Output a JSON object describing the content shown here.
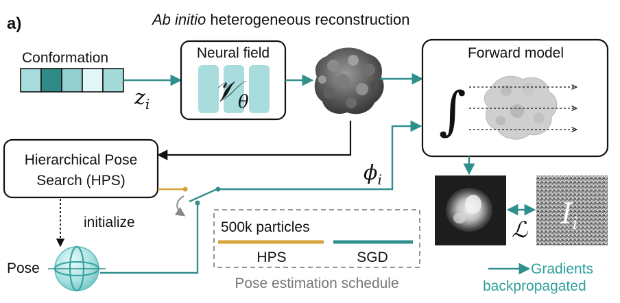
{
  "panel_label": "a)",
  "title_italic": "Ab initio",
  "title_rest": " heterogeneous reconstruction",
  "conformation": {
    "label": "Conformation",
    "cells": [
      "#a8dcdc",
      "#2f8a88",
      "#93cfcf",
      "#e3f6f6",
      "#a4dada"
    ],
    "latent_symbol": "z",
    "latent_sub": "i"
  },
  "neural_field": {
    "label": "Neural field",
    "symbol": "𝒱",
    "symbol_sub": "θ"
  },
  "forward_model": {
    "label": "Forward model",
    "integral": "∫"
  },
  "hps": {
    "line1": "Hierarchical Pose",
    "line2": "Search (HPS)"
  },
  "pose_symbol": "ϕ",
  "pose_sub": "i",
  "initialize_label": "initialize",
  "pose_label": "Pose",
  "loss_symbol": "ℒ",
  "image_symbol": "I",
  "image_sub": "i",
  "schedule": {
    "particles": "500k particles",
    "hps_label": "HPS",
    "sgd_label": "SGD",
    "caption": "Pose estimation schedule",
    "hps_color": "#d9a23a",
    "sgd_color": "#2f8f8c"
  },
  "gradients": {
    "line1": "Gradients",
    "line2": "backpropagated",
    "color": "#2f9f9c"
  },
  "colors": {
    "teal": "#2f8f8c",
    "gold": "#d9a23a",
    "ink": "#111111",
    "gray": "#777777"
  }
}
